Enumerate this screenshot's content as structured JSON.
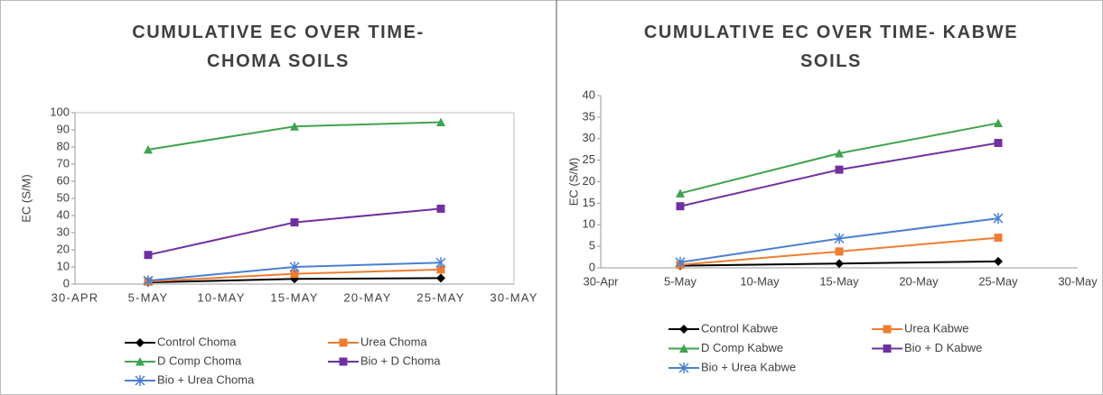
{
  "chart_data": [
    {
      "type": "line",
      "title": "CUMULATIVE EC OVER TIME- CHOMA SOILS",
      "y_label": "EC (S/M)",
      "x": [
        "5-MAY",
        "15-MAY",
        "25-MAY"
      ],
      "xticks": [
        "30-APR",
        "5-MAY",
        "10-MAY",
        "15-MAY",
        "20-MAY",
        "25-MAY",
        "30-MAY"
      ],
      "ylim": [
        0,
        100
      ],
      "yticks": [
        0,
        10,
        20,
        30,
        40,
        50,
        60,
        70,
        80,
        90,
        100
      ],
      "grid": false,
      "series": [
        {
          "name": "Control Choma",
          "color": "#000000",
          "marker": "diamond",
          "values": [
            1,
            3,
            3.5
          ]
        },
        {
          "name": "Urea Choma",
          "color": "#ed7d31",
          "marker": "square",
          "values": [
            1.5,
            6,
            8.5
          ]
        },
        {
          "name": "D Comp Choma",
          "color": "#3fa34d",
          "marker": "triangle",
          "values": [
            78.5,
            92,
            94.5
          ]
        },
        {
          "name": "Bio + D Choma",
          "color": "#7030a0",
          "marker": "square",
          "values": [
            17,
            36,
            44
          ]
        },
        {
          "name": "Bio + Urea Choma",
          "color": "#4a7fd4",
          "marker": "star",
          "values": [
            2,
            10,
            12.5
          ]
        }
      ]
    },
    {
      "type": "line",
      "title": "CUMULATIVE EC OVER TIME- KABWE SOILS",
      "y_label": "EC (S/M)",
      "x": [
        "5-May",
        "15-May",
        "25-May"
      ],
      "xticks": [
        "30-Apr",
        "5-May",
        "10-May",
        "15-May",
        "20-May",
        "25-May",
        "30-May"
      ],
      "ylim": [
        0,
        40
      ],
      "yticks": [
        0,
        5,
        10,
        15,
        20,
        25,
        30,
        35,
        40
      ],
      "grid": false,
      "series": [
        {
          "name": "Control Kabwe",
          "color": "#000000",
          "marker": "diamond",
          "values": [
            0.5,
            1,
            1.5
          ]
        },
        {
          "name": "Urea Kabwe",
          "color": "#ed7d31",
          "marker": "square",
          "values": [
            0.7,
            3.8,
            7
          ]
        },
        {
          "name": "D Comp Kabwe",
          "color": "#3fa34d",
          "marker": "triangle",
          "values": [
            17.3,
            26.6,
            33.6
          ]
        },
        {
          "name": "Bio + D Kabwe",
          "color": "#7030a0",
          "marker": "square",
          "values": [
            14.3,
            22.8,
            29
          ]
        },
        {
          "name": "Bio + Urea Kabwe",
          "color": "#4a7fd4",
          "marker": "star",
          "values": [
            1.3,
            6.8,
            11.5
          ]
        }
      ]
    }
  ]
}
